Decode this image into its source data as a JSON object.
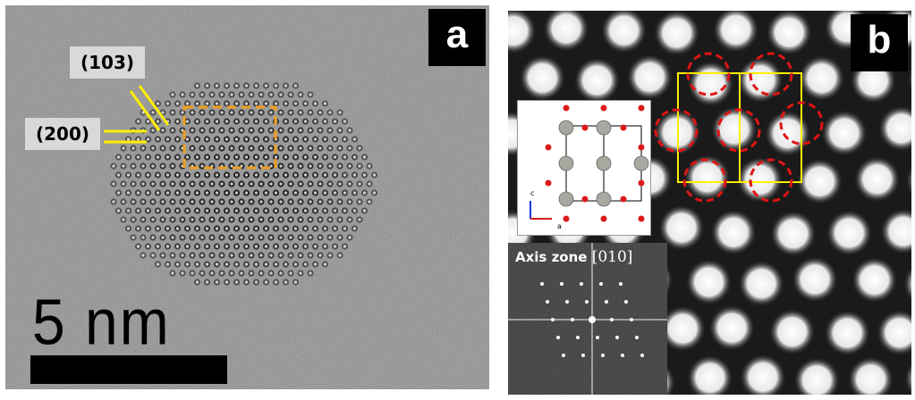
{
  "panel_a": {
    "label": "a",
    "plane_labels": [
      "(103)",
      "(200)"
    ],
    "scale_text": "5 nm",
    "colors": {
      "lattice_lines": "#ffee00",
      "roi_box": "#f0a01e",
      "background": "#8e8e8e"
    }
  },
  "panel_b": {
    "label": "b",
    "fft_title": "Axis zone",
    "fft_zone": "[010]",
    "structure_axes": {
      "c": "c",
      "a": "a"
    },
    "colors": {
      "unit_cell": "#ffee00",
      "highlight_circles": "#e01414",
      "atom_columns": "#f5f5f5"
    }
  }
}
